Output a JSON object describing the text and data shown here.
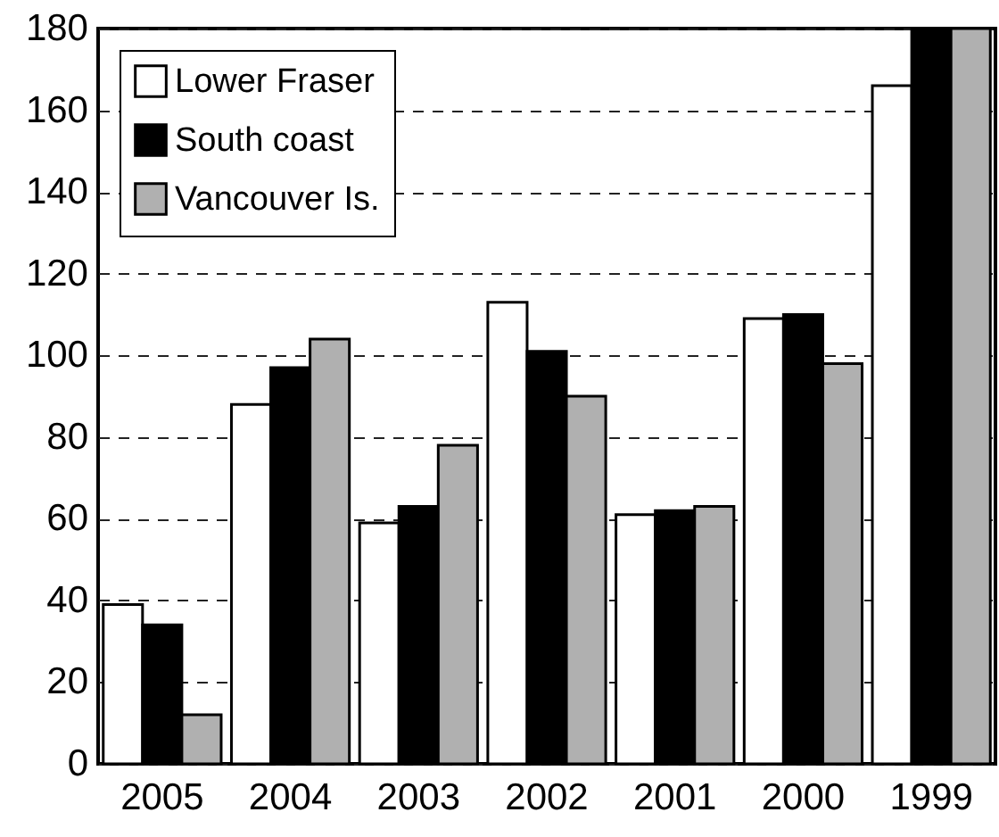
{
  "chart_data": {
    "type": "bar",
    "categories": [
      "2005",
      "2004",
      "2003",
      "2002",
      "2001",
      "2000",
      "1999"
    ],
    "series": [
      {
        "name": "Lower Fraser",
        "color": "#ffffff",
        "values": [
          39,
          88,
          59,
          113,
          61,
          109,
          166
        ]
      },
      {
        "name": "South coast",
        "color": "#000000",
        "values": [
          34,
          97,
          63,
          101,
          62,
          110,
          180
        ]
      },
      {
        "name": "Vancouver Is.",
        "color": "#b0b0b0",
        "values": [
          12,
          104,
          78,
          90,
          63,
          98,
          180
        ]
      }
    ],
    "ylim": [
      0,
      180
    ],
    "yticks": [
      0,
      20,
      40,
      60,
      80,
      100,
      120,
      140,
      160,
      180
    ],
    "grid": "y",
    "legend": "top left"
  }
}
